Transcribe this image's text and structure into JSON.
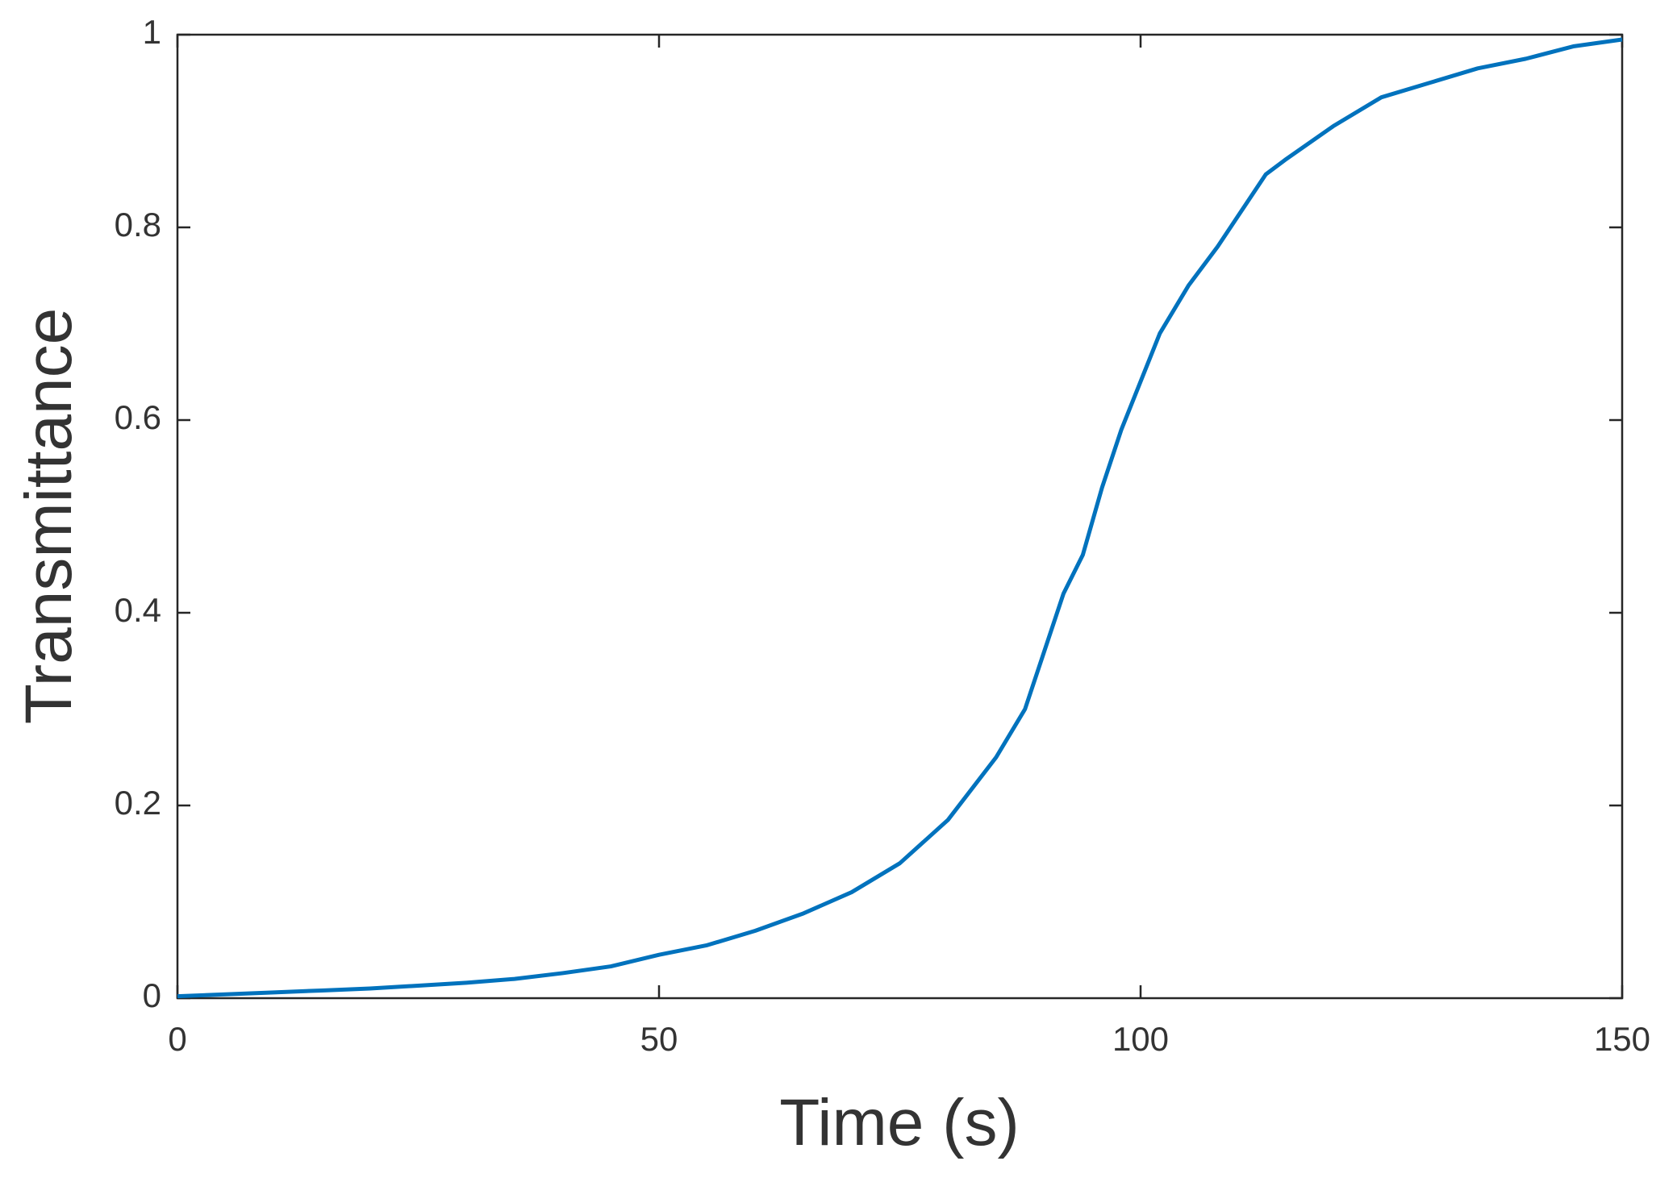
{
  "chart_data": {
    "type": "line",
    "xlabel": "Time (s)",
    "ylabel": "Transmittance",
    "x": [
      0,
      5,
      10,
      15,
      20,
      25,
      30,
      35,
      40,
      45,
      50,
      55,
      60,
      65,
      70,
      75,
      80,
      85,
      88,
      90,
      92,
      94,
      96,
      98,
      100,
      102,
      105,
      108,
      110,
      113,
      115,
      120,
      125,
      130,
      135,
      140,
      145,
      150
    ],
    "series": [
      {
        "color": "#0072bd",
        "values": [
          0.002,
          0.004,
          0.006,
          0.008,
          0.01,
          0.013,
          0.016,
          0.02,
          0.026,
          0.033,
          0.045,
          0.055,
          0.07,
          0.088,
          0.11,
          0.14,
          0.185,
          0.25,
          0.3,
          0.36,
          0.42,
          0.46,
          0.53,
          0.59,
          0.64,
          0.69,
          0.74,
          0.78,
          0.81,
          0.855,
          0.87,
          0.905,
          0.935,
          0.95,
          0.965,
          0.975,
          0.988,
          0.995
        ]
      }
    ],
    "xlim": [
      0,
      150
    ],
    "xticks": [
      0,
      50,
      100,
      150
    ],
    "ylim": [
      0,
      1
    ],
    "yticks": [
      0,
      0.2,
      0.4,
      0.6,
      0.8,
      1
    ],
    "grid": false
  }
}
